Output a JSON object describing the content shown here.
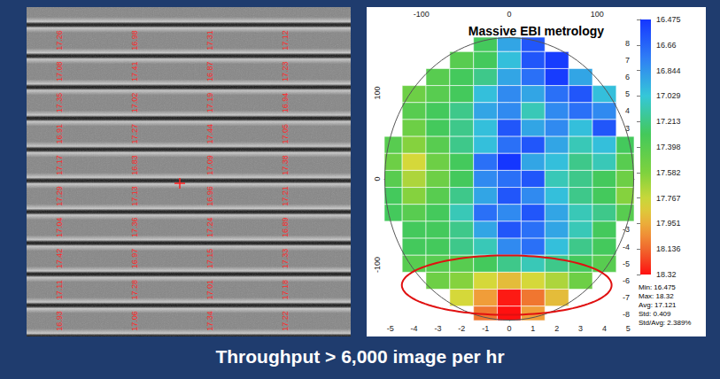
{
  "slide": {
    "caption": "Throughput > 6,000 image per hr"
  },
  "sem_image": {
    "labels": [
      [
        "17.26",
        "16.98",
        "17.31",
        "17.12"
      ],
      [
        "17.08",
        "17.41",
        "16.87",
        "17.23"
      ],
      [
        "17.35",
        "17.02",
        "17.19",
        "16.94"
      ],
      [
        "16.91",
        "17.27",
        "17.44",
        "17.05"
      ],
      [
        "17.17",
        "16.83",
        "17.09",
        "17.38"
      ],
      [
        "17.29",
        "17.13",
        "16.96",
        "17.21"
      ],
      [
        "17.04",
        "17.36",
        "17.24",
        "16.89"
      ],
      [
        "17.42",
        "16.97",
        "17.15",
        "17.33"
      ],
      [
        "17.11",
        "17.28",
        "17.01",
        "17.18"
      ],
      [
        "16.93",
        "17.06",
        "17.34",
        "17.22"
      ]
    ]
  },
  "chart_data": {
    "type": "heatmap",
    "title": "Massive EBI metrology",
    "x": [
      -5,
      -4,
      -3,
      -2,
      -1,
      0,
      1,
      2,
      3,
      4,
      5
    ],
    "y": [
      8,
      7,
      6,
      5,
      4,
      3,
      2,
      1,
      0,
      -1,
      -2,
      -3,
      -4,
      -5,
      -6,
      -7,
      -8
    ],
    "cells": [
      [
        null,
        null,
        null,
        null,
        17.3,
        16.9,
        16.6,
        null,
        null,
        null,
        null
      ],
      [
        null,
        null,
        null,
        17.4,
        17.3,
        17.0,
        16.6,
        16.5,
        null,
        null,
        null
      ],
      [
        null,
        null,
        17.4,
        17.3,
        17.2,
        16.9,
        16.7,
        16.5,
        16.9,
        null,
        null
      ],
      [
        null,
        17.5,
        17.4,
        17.3,
        17.0,
        16.8,
        16.9,
        16.7,
        16.6,
        17.0,
        null
      ],
      [
        null,
        17.4,
        17.3,
        17.2,
        16.9,
        16.8,
        17.1,
        16.8,
        16.7,
        16.8,
        null
      ],
      [
        null,
        17.5,
        17.3,
        17.2,
        17.0,
        16.6,
        16.9,
        16.8,
        17.0,
        16.6,
        null
      ],
      [
        17.4,
        17.6,
        17.4,
        17.2,
        17.0,
        16.7,
        16.6,
        16.9,
        17.1,
        17.0,
        17.3
      ],
      [
        17.5,
        17.8,
        17.5,
        17.3,
        16.7,
        16.475,
        16.9,
        17.0,
        17.2,
        17.1,
        17.4
      ],
      [
        17.4,
        17.7,
        17.5,
        17.3,
        16.8,
        16.7,
        16.6,
        17.1,
        17.2,
        17.3,
        17.5
      ],
      [
        17.3,
        17.6,
        17.4,
        17.2,
        16.9,
        16.6,
        16.8,
        17.0,
        17.2,
        17.3,
        17.6
      ],
      [
        17.3,
        17.4,
        17.3,
        17.1,
        16.7,
        16.8,
        16.6,
        16.9,
        17.1,
        17.2,
        17.4
      ],
      [
        null,
        17.3,
        17.3,
        17.2,
        16.9,
        16.6,
        16.7,
        16.9,
        17.1,
        17.3,
        null
      ],
      [
        null,
        17.3,
        17.3,
        17.2,
        17.1,
        16.8,
        16.7,
        17.0,
        17.2,
        17.3,
        null
      ],
      [
        null,
        17.4,
        17.4,
        17.4,
        17.3,
        17.2,
        17.1,
        17.2,
        17.3,
        17.4,
        null
      ],
      [
        null,
        null,
        17.5,
        17.6,
        17.8,
        17.9,
        17.8,
        17.7,
        17.5,
        null,
        null
      ],
      [
        null,
        null,
        null,
        17.8,
        18.0,
        18.3,
        18.1,
        17.9,
        null,
        null,
        null
      ],
      [
        null,
        null,
        null,
        null,
        18.1,
        18.32,
        18.0,
        null,
        null,
        null,
        null
      ]
    ],
    "xlim": [
      -5.25,
      5.25
    ],
    "xticks": [
      -5,
      -4,
      -3,
      -2,
      -1,
      0,
      1,
      2,
      3,
      4,
      5
    ],
    "ylim": [
      -8.35,
      8.35
    ],
    "yticks": [
      -8,
      -7,
      -6,
      -5,
      -4,
      -3,
      -2,
      -1,
      0,
      1,
      2,
      3,
      4,
      5,
      6,
      7,
      8
    ],
    "x2lim": [
      -142,
      142
    ],
    "x2ticks": [
      -100,
      0,
      100
    ],
    "y2lim": [
      -165,
      165
    ],
    "y2ticks": [
      -100,
      0,
      100
    ],
    "colorbar": {
      "range": [
        16.475,
        18.32
      ],
      "ticks": [
        16.475,
        16.66,
        16.844,
        17.029,
        17.213,
        17.398,
        17.582,
        17.767,
        17.951,
        18.136,
        18.32
      ]
    },
    "stats": [
      "Min: 16.475",
      "Max: 18.32",
      "Avg: 17.121",
      "Std: 0.409",
      "Std/Avg: 2.389%"
    ],
    "grid": true
  }
}
